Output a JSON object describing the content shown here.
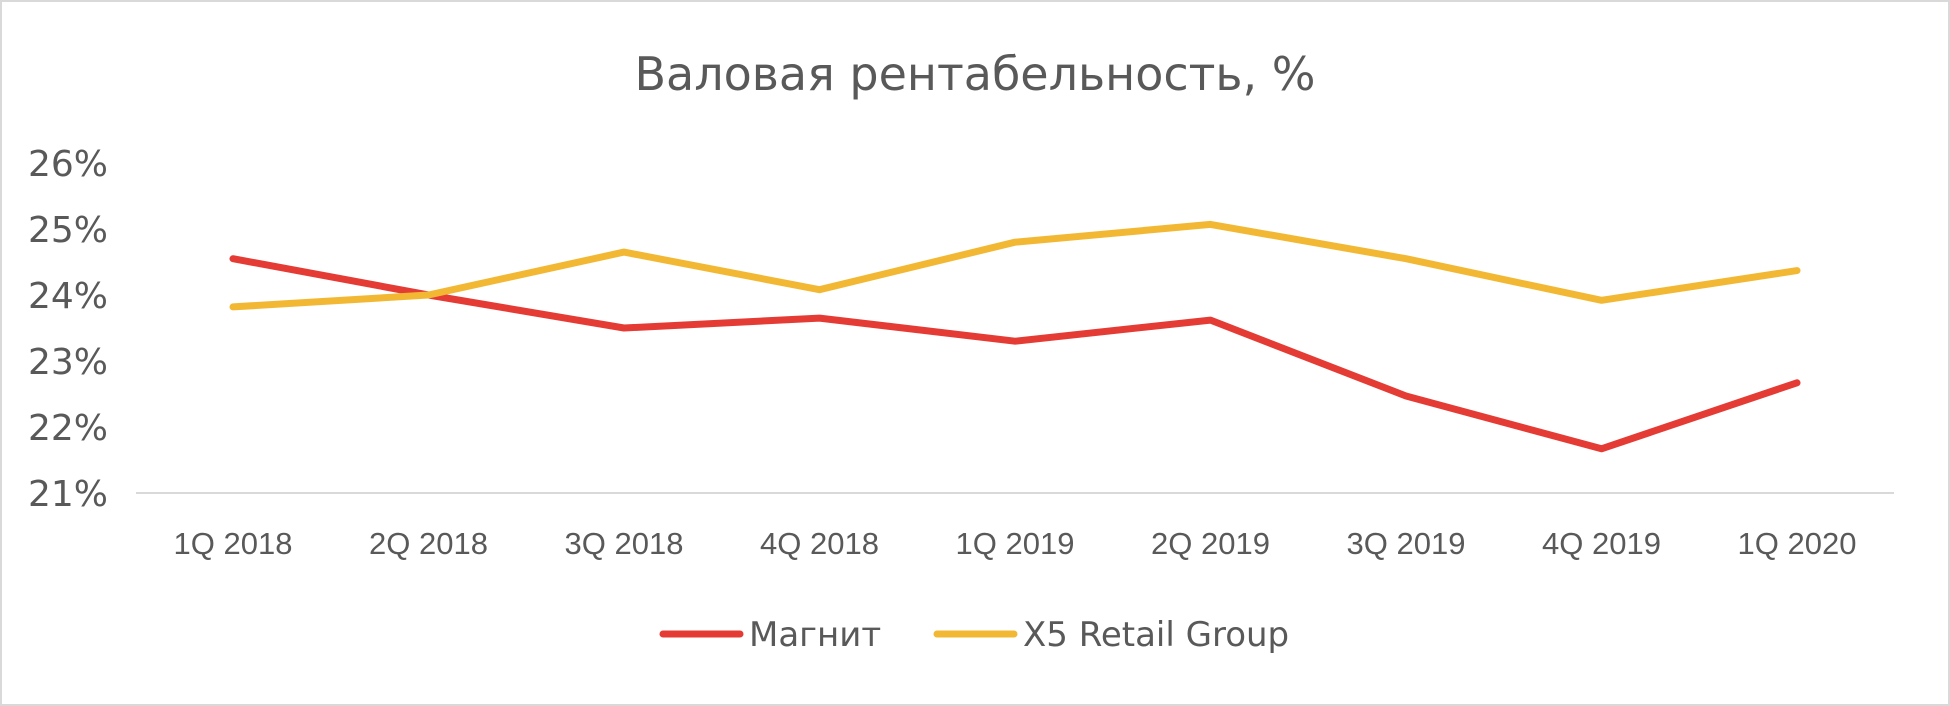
{
  "chart_data": {
    "type": "line",
    "title": "Валовая рентабельность, %",
    "xlabel": "",
    "ylabel": "",
    "categories": [
      "1Q 2018",
      "2Q 2018",
      "3Q 2018",
      "4Q 2018",
      "1Q 2019",
      "2Q 2019",
      "3Q 2019",
      "4Q 2019",
      "1Q 2020"
    ],
    "yticks": [
      "21%",
      "22%",
      "23%",
      "24%",
      "25%",
      "26%"
    ],
    "ylim": [
      21,
      26
    ],
    "grid": false,
    "legend_position": "bottom",
    "series": [
      {
        "name": "Магнит",
        "color": "#e53b35",
        "values": [
          24.55,
          24.0,
          23.5,
          23.65,
          23.3,
          23.62,
          22.47,
          21.67,
          22.67
        ]
      },
      {
        "name": "X5 Retail Group",
        "color": "#f2b834",
        "values": [
          23.82,
          24.0,
          24.65,
          24.08,
          24.8,
          25.07,
          24.55,
          23.92,
          24.37
        ]
      }
    ]
  }
}
